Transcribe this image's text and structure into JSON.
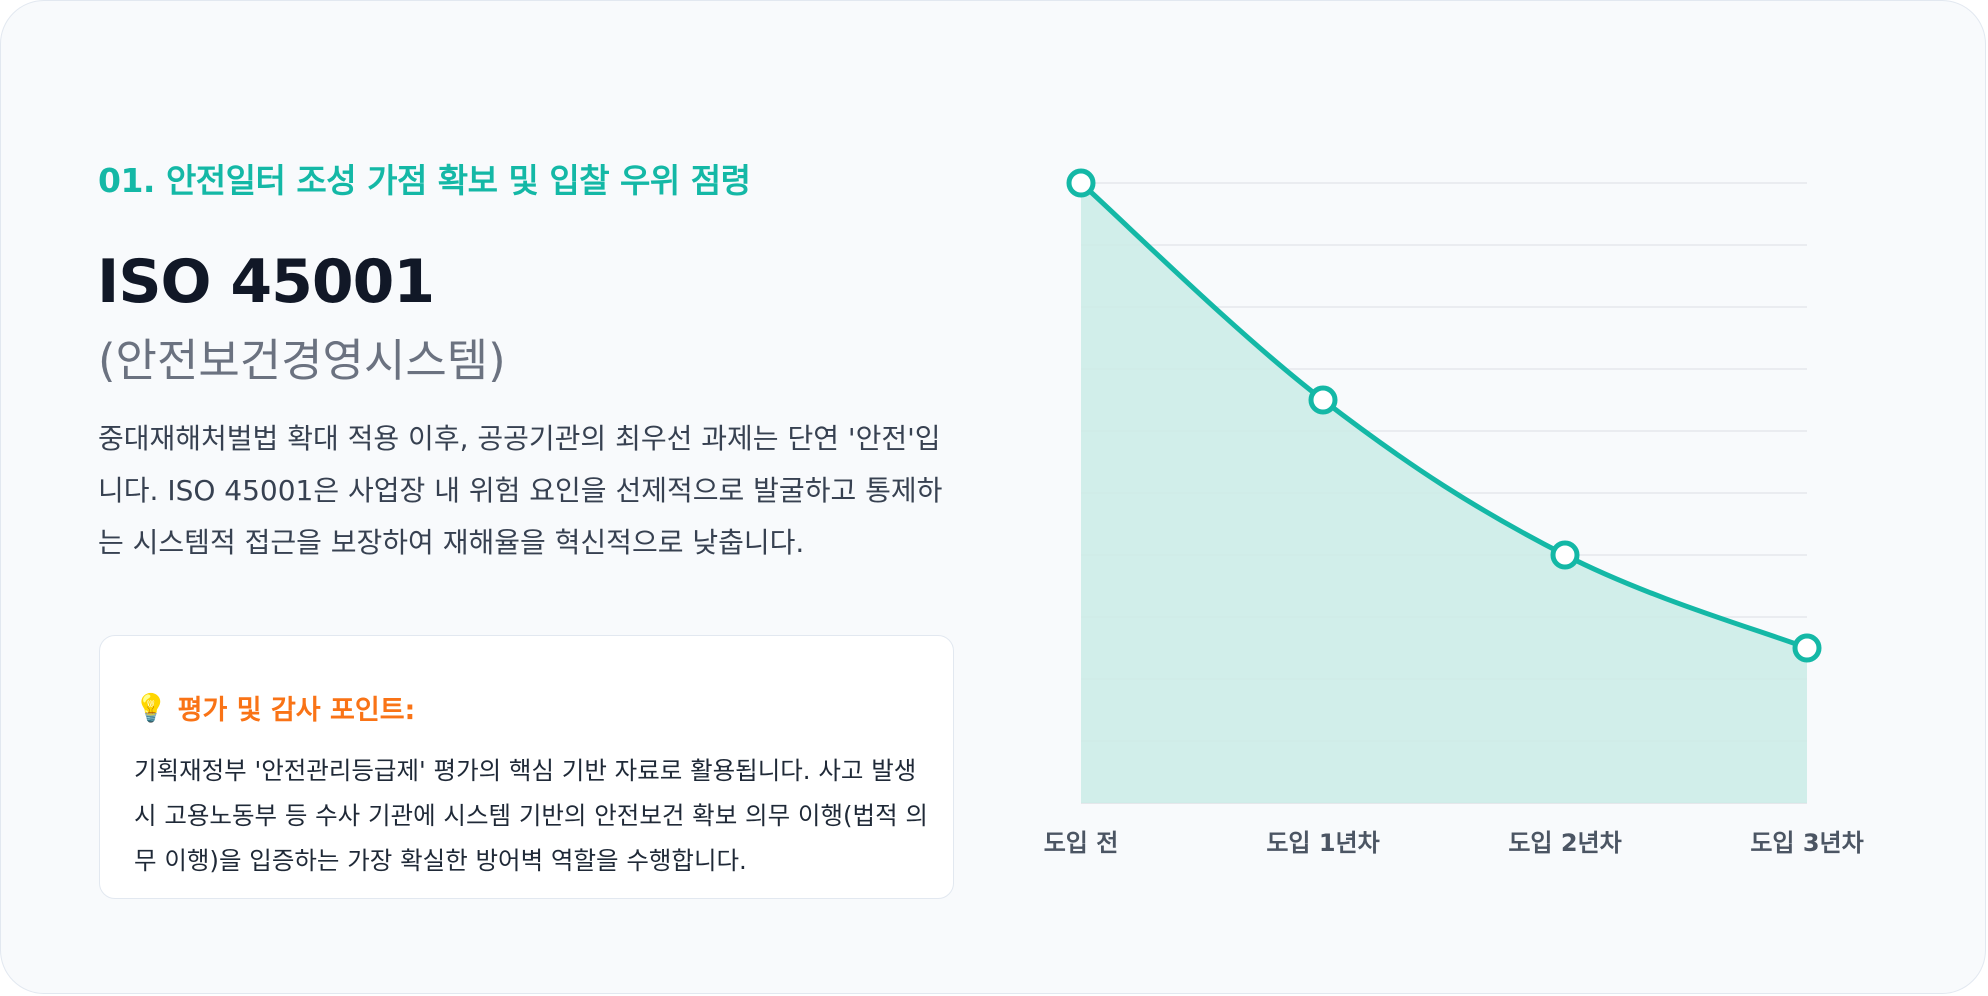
{
  "section": {
    "label": "01. 안전일터 조성 가점 확보 및 입찰 우위 점령"
  },
  "hero": {
    "title": "ISO 45001",
    "subtitle": "(안전보건경영시스템)",
    "description": "중대재해처벌법 확대 적용 이후, 공공기관의 최우선 과제는 단연 '안전'입니다. ISO 45001은 사업장 내 위험 요인을 선제적으로 발굴하고 통제하는 시스템적 접근을 보장하여 재해율을 혁신적으로 낮춥니다."
  },
  "tip": {
    "icon": "lightbulb-icon",
    "title": "평가 및 감사 포인트:",
    "body": "기획재정부 '안전관리등급제' 평가의 핵심 기반 자료로 활용됩니다. 사고 발생 시 고용노동부 등 수사 기관에 시스템 기반의 안전보건 확보 의무 이행(법적 의무 이행)을 입증하는 가장 확실한 방어벽 역할을 수행합니다."
  },
  "colors": {
    "accent": "#14b8a6",
    "fill": "#ccece8",
    "grid": "#e5e7eb",
    "tip_title": "#f97316"
  },
  "chart_data": {
    "type": "area",
    "categories": [
      "도입 전",
      "도입 1년차",
      "도입 2년차",
      "도입 3년차"
    ],
    "values": [
      100,
      65,
      40,
      25
    ],
    "title": "",
    "xlabel": "",
    "ylabel": "",
    "ylim": [
      0,
      100
    ],
    "y_gridlines": 10,
    "grid": true,
    "legend": "none",
    "y_tick_labels": false,
    "marker": "hollow-circle",
    "smooth": true
  }
}
